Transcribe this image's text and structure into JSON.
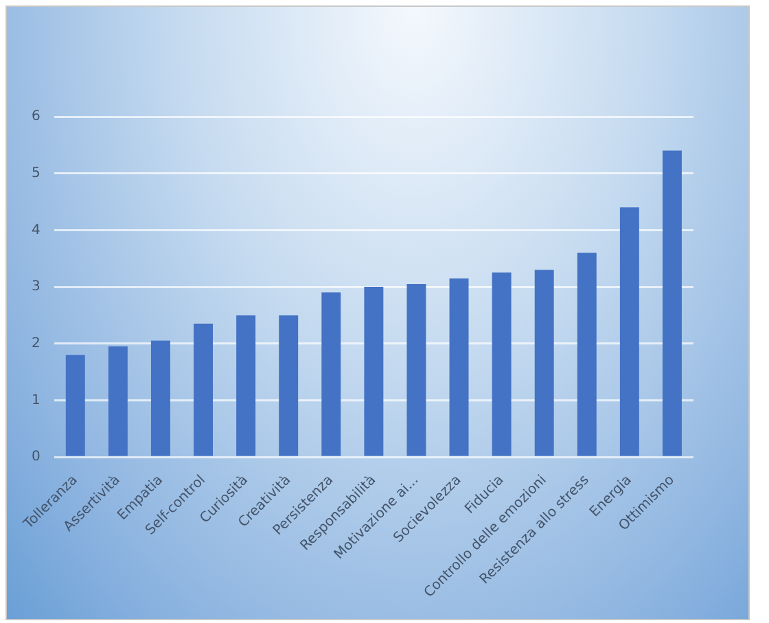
{
  "chart_data": {
    "type": "bar",
    "categories": [
      "Tolleranza",
      "Assertività",
      "Empatia",
      "Self-control",
      "Curiosità",
      "Creatività",
      "Persistenza",
      "Responsabilità",
      "Motivazione ai...",
      "Socievolezza",
      "Fiducia",
      "Controllo delle emozioni",
      "Resistenza allo stress",
      "Energia",
      "Ottimismo"
    ],
    "values": [
      1.8,
      1.95,
      2.05,
      2.35,
      2.5,
      2.5,
      2.9,
      3.0,
      3.05,
      3.15,
      3.25,
      3.3,
      3.6,
      4.4,
      5.4
    ],
    "color": "#4472c4",
    "ylim": [
      0,
      6
    ],
    "yticks": [
      0,
      1,
      2,
      3,
      4,
      5,
      6
    ],
    "grid": "y"
  }
}
